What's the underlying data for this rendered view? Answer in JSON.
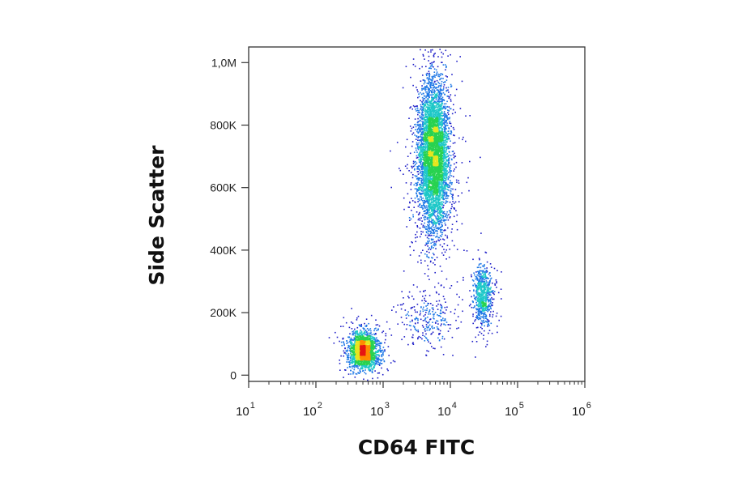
{
  "chart_data": {
    "type": "scatter",
    "title": "",
    "xlabel": "CD64 FITC",
    "ylabel": "Side Scatter",
    "x_scale": "log",
    "xlim": [
      10,
      1000000
    ],
    "ylim": [
      -20000,
      1050000
    ],
    "x_ticks": [
      {
        "base": "10",
        "exp": "1"
      },
      {
        "base": "10",
        "exp": "2"
      },
      {
        "base": "10",
        "exp": "3"
      },
      {
        "base": "10",
        "exp": "4"
      },
      {
        "base": "10",
        "exp": "5"
      },
      {
        "base": "10",
        "exp": "6"
      }
    ],
    "y_ticks": [
      {
        "value": 0,
        "label": "0"
      },
      {
        "value": 200000,
        "label": "200K"
      },
      {
        "value": 400000,
        "label": "400K"
      },
      {
        "value": 600000,
        "label": "600K"
      },
      {
        "value": 800000,
        "label": "800K"
      },
      {
        "value": 1000000,
        "label": "1,0M"
      }
    ],
    "grid": false,
    "legend": "none",
    "density_colormap": [
      "#1e1ec8",
      "#1e78e6",
      "#1ec8c8",
      "#28d250",
      "#e6e61e",
      "#ff8c00",
      "#e61414"
    ],
    "populations": [
      {
        "center_x": 500,
        "center_y": 80000,
        "spread_x_log10": 0.1,
        "spread_y": 28000,
        "count": 2200
      },
      {
        "center_x": 5500,
        "center_y": 700000,
        "spread_x_log10": 0.11,
        "spread_y": 115000,
        "count": 5200
      },
      {
        "center_x": 30000,
        "center_y": 260000,
        "spread_x_log10": 0.07,
        "spread_y": 45000,
        "count": 700
      },
      {
        "center_x": 4500,
        "center_y": 180000,
        "spread_x_log10": 0.2,
        "spread_y": 45000,
        "count": 250
      }
    ]
  }
}
